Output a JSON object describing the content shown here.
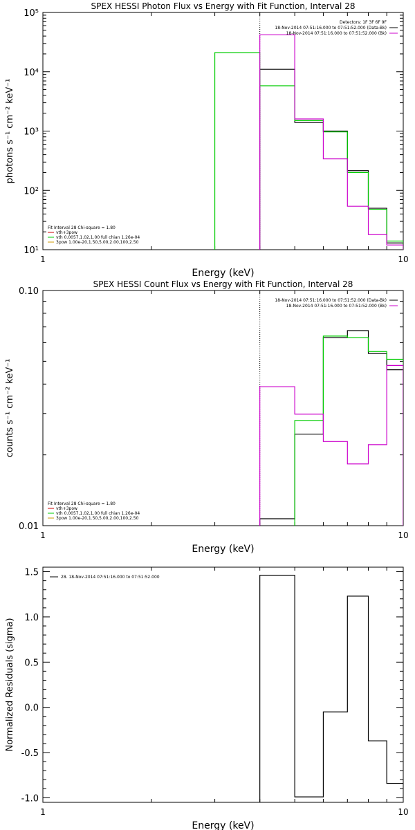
{
  "colors": {
    "data_black": "#000000",
    "model_green": "#00cc00",
    "background_magenta": "#cc00cc",
    "vth_red": "#cc0000",
    "bpow_yellow": "#cc9900"
  },
  "chart_data": [
    {
      "type": "line",
      "step": true,
      "title": "SPEX HESSI Photon Flux vs Energy with Fit Function, Interval 28",
      "xlabel": "Energy (keV)",
      "ylabel": "photons s⁻¹ cm⁻² keV⁻¹",
      "xscale": "log",
      "yscale": "log",
      "xlim": [
        1,
        10
      ],
      "ylim": [
        10,
        100000
      ],
      "x_ticks": [
        "1",
        "10"
      ],
      "y_ticks": [
        "10¹",
        "10²",
        "10³",
        "10⁴",
        "10⁵"
      ],
      "vline_x": 4.0,
      "legend_right": [
        "Detectors: 1F 3F 6F 9F",
        "18-Nov-2014 07:51:16.000 to 07:51:52.000 (Data-Bk)",
        "18-Nov-2014 07:51:16.000 to 07:51:52.000 (Bk)"
      ],
      "legend_left": [
        "Fit Interval 28   Chi-square = 1.80",
        "vth+3pow",
        "vth 0.0057,1.02,1.00  full chian 1.26e-04",
        "3pow 1.00e-20,1.50,5.00,2.00,100,2.50"
      ],
      "series": [
        {
          "name": "Data-Bk",
          "color": "#000000",
          "bins": [
            {
              "x0": 4.0,
              "x1": 5.0,
              "y": 11000
            },
            {
              "x0": 5.0,
              "x1": 6.0,
              "y": 1400
            },
            {
              "x0": 6.0,
              "x1": 7.0,
              "y": 1000
            },
            {
              "x0": 7.0,
              "x1": 8.0,
              "y": 215
            },
            {
              "x0": 8.0,
              "x1": 9.0,
              "y": 50
            },
            {
              "x0": 9.0,
              "x1": 10.0,
              "y": 13
            }
          ]
        },
        {
          "name": "vth+3pow",
          "color": "#00cc00",
          "bins": [
            {
              "x0": 3.0,
              "x1": 4.0,
              "y": 21000
            },
            {
              "x0": 4.0,
              "x1": 5.0,
              "y": 5800
            },
            {
              "x0": 5.0,
              "x1": 6.0,
              "y": 1500
            },
            {
              "x0": 6.0,
              "x1": 7.0,
              "y": 970
            },
            {
              "x0": 7.0,
              "x1": 8.0,
              "y": 200
            },
            {
              "x0": 8.0,
              "x1": 9.0,
              "y": 48
            },
            {
              "x0": 9.0,
              "x1": 10.0,
              "y": 14
            }
          ]
        },
        {
          "name": "Bk",
          "color": "#cc00cc",
          "bins": [
            {
              "x0": 4.0,
              "x1": 5.0,
              "y": 42000
            },
            {
              "x0": 5.0,
              "x1": 6.0,
              "y": 1600
            },
            {
              "x0": 6.0,
              "x1": 7.0,
              "y": 340
            },
            {
              "x0": 7.0,
              "x1": 8.0,
              "y": 54
            },
            {
              "x0": 8.0,
              "x1": 9.0,
              "y": 18
            },
            {
              "x0": 9.0,
              "x1": 10.0,
              "y": 12
            }
          ]
        }
      ]
    },
    {
      "type": "line",
      "step": true,
      "title": "SPEX HESSI Count Flux vs Energy with Fit Function, Interval 28",
      "xlabel": "Energy (keV)",
      "ylabel": "counts s⁻¹ cm⁻² keV⁻¹",
      "xscale": "log",
      "yscale": "log",
      "xlim": [
        1,
        10
      ],
      "ylim": [
        0.01,
        0.1
      ],
      "x_ticks": [
        "1",
        "10"
      ],
      "y_ticks": [
        "0.01",
        "0.10"
      ],
      "vline_x": 4.0,
      "legend_right": [
        "18-Nov-2014 07:51:16.000 to 07:51:52.000 (Data-Bk)",
        "18-Nov-2014 07:51:16.000 to 07:51:52.000 (Bk)"
      ],
      "legend_left": [
        "Fit Interval 28   Chi-square = 1.80",
        "vth+3pow",
        "vth 0.0057,1.02,1.00  full chian 1.26e-04",
        "3pow 1.00e-20,1.50,5.00,2.00,100,2.50"
      ],
      "series": [
        {
          "name": "Data-Bk",
          "color": "#000000",
          "bins": [
            {
              "x0": 4.0,
              "x1": 5.0,
              "y": 0.0107
            },
            {
              "x0": 5.0,
              "x1": 6.0,
              "y": 0.0245
            },
            {
              "x0": 6.0,
              "x1": 7.0,
              "y": 0.063
            },
            {
              "x0": 7.0,
              "x1": 8.0,
              "y": 0.0675
            },
            {
              "x0": 8.0,
              "x1": 9.0,
              "y": 0.054
            },
            {
              "x0": 9.0,
              "x1": 10.0,
              "y": 0.046
            }
          ]
        },
        {
          "name": "vth+3pow",
          "color": "#00cc00",
          "bins": [
            {
              "x0": 5.0,
              "x1": 6.0,
              "y": 0.028
            },
            {
              "x0": 6.0,
              "x1": 7.0,
              "y": 0.064
            },
            {
              "x0": 7.0,
              "x1": 8.0,
              "y": 0.063
            },
            {
              "x0": 8.0,
              "x1": 9.0,
              "y": 0.055
            },
            {
              "x0": 9.0,
              "x1": 10.0,
              "y": 0.051
            }
          ]
        },
        {
          "name": "Bk",
          "color": "#cc00cc",
          "bins": [
            {
              "x0": 4.0,
              "x1": 5.0,
              "y": 0.039
            },
            {
              "x0": 5.0,
              "x1": 6.0,
              "y": 0.0298
            },
            {
              "x0": 6.0,
              "x1": 7.0,
              "y": 0.0228
            },
            {
              "x0": 7.0,
              "x1": 8.0,
              "y": 0.0183
            },
            {
              "x0": 8.0,
              "x1": 9.0,
              "y": 0.0221
            },
            {
              "x0": 9.0,
              "x1": 10.0,
              "y": 0.048
            }
          ]
        }
      ]
    },
    {
      "type": "line",
      "step": true,
      "title": "",
      "xlabel": "Energy (keV)",
      "ylabel": "Normalized Residuals (sigma)",
      "xscale": "log",
      "yscale": "linear",
      "xlim": [
        1,
        10
      ],
      "ylim": [
        -1.05,
        1.55
      ],
      "x_ticks": [
        "1",
        "10"
      ],
      "y_ticks": [
        "-1.0",
        "-0.5",
        "0.0",
        "0.5",
        "1.0",
        "1.5"
      ],
      "y_tick_values": [
        -1.0,
        -0.5,
        0.0,
        0.5,
        1.0,
        1.5
      ],
      "legend_left": [
        "28. 18-Nov-2014 07:51:16.000 to 07:51:52.000"
      ],
      "series": [
        {
          "name": "28. 18-Nov-2014 07:51:16.000 to 07:51:52.000",
          "color": "#000000",
          "bins": [
            {
              "x0": 4.0,
              "x1": 5.0,
              "y": 1.46
            },
            {
              "x0": 5.0,
              "x1": 6.0,
              "y": -0.99
            },
            {
              "x0": 6.0,
              "x1": 7.0,
              "y": -0.05
            },
            {
              "x0": 7.0,
              "x1": 8.0,
              "y": 1.23
            },
            {
              "x0": 8.0,
              "x1": 9.0,
              "y": -0.37
            },
            {
              "x0": 9.0,
              "x1": 10.0,
              "y": -0.84
            }
          ]
        }
      ]
    }
  ]
}
